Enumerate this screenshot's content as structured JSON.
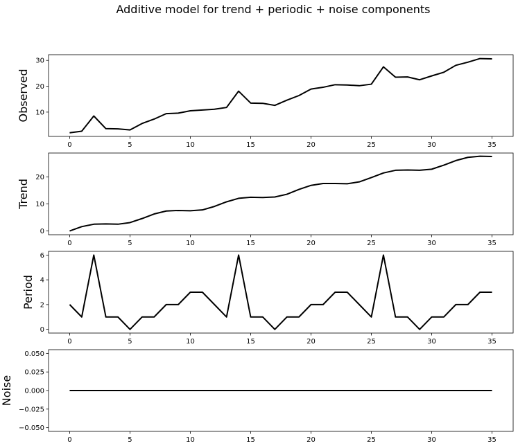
{
  "chart_data": {
    "type": "line",
    "title": "Additive model for trend + periodic + noise components",
    "line_color": "#000000",
    "x": [
      0,
      1,
      2,
      3,
      4,
      5,
      6,
      7,
      8,
      9,
      10,
      11,
      12,
      13,
      14,
      15,
      16,
      17,
      18,
      19,
      20,
      21,
      22,
      23,
      24,
      25,
      26,
      27,
      28,
      29,
      30,
      31,
      32,
      33,
      34,
      35
    ],
    "xlim": [
      -1.75,
      36.75
    ],
    "xticks": [
      0,
      5,
      10,
      15,
      20,
      25,
      30,
      35
    ],
    "xtick_labels": [
      "0",
      "5",
      "10",
      "15",
      "20",
      "25",
      "30",
      "35"
    ],
    "panels": [
      {
        "name": "Observed",
        "ylabel": "Observed",
        "ylim": [
          0.6,
          32.2
        ],
        "yticks": [
          10,
          20,
          30
        ],
        "ytick_labels": [
          "10",
          "20",
          "30"
        ],
        "values": [
          2.0,
          2.6,
          8.5,
          3.6,
          3.5,
          3.1,
          5.6,
          7.3,
          9.4,
          9.6,
          10.5,
          10.8,
          11.1,
          11.8,
          18.1,
          13.5,
          13.4,
          12.6,
          14.6,
          16.4,
          18.9,
          19.6,
          20.6,
          20.5,
          20.2,
          20.8,
          27.5,
          23.5,
          23.6,
          22.5,
          24.0,
          25.4,
          28.1,
          29.3,
          30.7,
          30.6
        ]
      },
      {
        "name": "Trend",
        "ylabel": "Trend",
        "ylim": [
          -1.4,
          28.9
        ],
        "yticks": [
          0,
          10,
          20
        ],
        "ytick_labels": [
          "0",
          "10",
          "20"
        ],
        "values": [
          0.0,
          1.6,
          2.5,
          2.6,
          2.5,
          3.1,
          4.6,
          6.3,
          7.4,
          7.6,
          7.5,
          7.8,
          9.1,
          10.8,
          12.1,
          12.5,
          12.4,
          12.6,
          13.6,
          15.4,
          16.9,
          17.6,
          17.6,
          17.5,
          18.2,
          19.8,
          21.5,
          22.5,
          22.6,
          22.5,
          22.9,
          24.4,
          26.1,
          27.3,
          27.7,
          27.6
        ]
      },
      {
        "name": "Period",
        "ylabel": "Period",
        "ylim": [
          -0.3,
          6.3
        ],
        "yticks": [
          0,
          2,
          4,
          6
        ],
        "ytick_labels": [
          "0",
          "2",
          "4",
          "6"
        ],
        "values": [
          2,
          1,
          6,
          1,
          1,
          0,
          1,
          1,
          2,
          2,
          3,
          3,
          2,
          1,
          6,
          1,
          1,
          0,
          1,
          1,
          2,
          2,
          3,
          3,
          2,
          1,
          6,
          1,
          1,
          0,
          1,
          1,
          2,
          2,
          3,
          3
        ]
      },
      {
        "name": "Noise",
        "ylabel": "Noise",
        "ylim": [
          -0.055,
          0.055
        ],
        "yticks": [
          0.05,
          0.025,
          0.0,
          -0.025,
          -0.05
        ],
        "ytick_labels": [
          "0.050",
          "0.025",
          "0.000",
          "−0.025",
          "−0.050"
        ],
        "values": [
          0,
          0,
          0,
          0,
          0,
          0,
          0,
          0,
          0,
          0,
          0,
          0,
          0,
          0,
          0,
          0,
          0,
          0,
          0,
          0,
          0,
          0,
          0,
          0,
          0,
          0,
          0,
          0,
          0,
          0,
          0,
          0,
          0,
          0,
          0,
          0
        ]
      }
    ]
  }
}
